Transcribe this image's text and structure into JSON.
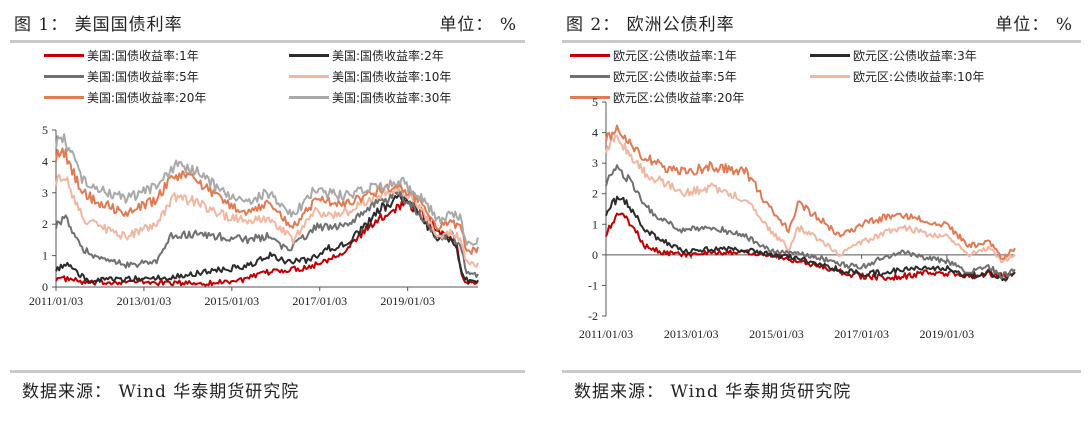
{
  "figures": [
    {
      "title": "图 1： 美国国债利率",
      "unit": "单位： %",
      "source": "数据来源： Wind  华泰期货研究院",
      "legend": [
        "美国:国债收益率:1年",
        "美国:国债收益率:2年",
        "美国:国债收益率:5年",
        "美国:国债收益率:10年",
        "美国:国债收益率:20年",
        "美国:国债收益率:30年"
      ]
    },
    {
      "title": "图 2： 欧洲公债利率",
      "unit": "单位： %",
      "source": "数据来源： Wind  华泰期货研究院",
      "legend": [
        "欧元区:公债收益率:1年",
        "欧元区:公债收益率:3年",
        "欧元区:公债收益率:5年",
        "欧元区:公债收益率:10年",
        "欧元区:公债收益率:20年"
      ]
    }
  ],
  "chart_data": [
    {
      "type": "line",
      "xlabel": "",
      "ylabel": "",
      "ylim": [
        0,
        5
      ],
      "yticks": [
        "0",
        "1",
        "2",
        "3",
        "4",
        "5"
      ],
      "xlim": [
        2011.0,
        2020.6
      ],
      "xticks": [
        2011.0,
        2013.0,
        2015.0,
        2017.0,
        2019.0
      ],
      "xtick_labels": [
        "2011/01/03",
        "2013/01/03",
        "2015/01/03",
        "2017/01/03",
        "2019/01/03"
      ],
      "grid": false,
      "legend_position": "top",
      "series": [
        {
          "name": "美国:国债收益率:1年",
          "color": "#c00000",
          "x": [
            2011.0,
            2011.3,
            2011.7,
            2012.5,
            2013.5,
            2014.5,
            2015.3,
            2015.9,
            2016.3,
            2016.8,
            2017.2,
            2017.6,
            2018.0,
            2018.4,
            2018.8,
            2018.95,
            2019.3,
            2019.6,
            2019.9,
            2020.1,
            2020.25,
            2020.4,
            2020.6
          ],
          "y": [
            0.28,
            0.25,
            0.12,
            0.17,
            0.13,
            0.12,
            0.24,
            0.5,
            0.55,
            0.65,
            0.9,
            1.2,
            1.75,
            2.2,
            2.6,
            2.7,
            2.4,
            1.9,
            1.6,
            1.5,
            0.2,
            0.15,
            0.13
          ]
        },
        {
          "name": "美国:国债收益率:2年",
          "color": "#2b2b2b",
          "x": [
            2011.0,
            2011.3,
            2011.7,
            2012.5,
            2013.5,
            2014.5,
            2015.3,
            2015.9,
            2016.3,
            2016.8,
            2017.2,
            2017.6,
            2018.0,
            2018.4,
            2018.8,
            2018.95,
            2019.3,
            2019.6,
            2019.9,
            2020.1,
            2020.25,
            2020.4,
            2020.6
          ],
          "y": [
            0.6,
            0.7,
            0.2,
            0.25,
            0.3,
            0.5,
            0.65,
            1.0,
            0.8,
            0.85,
            1.25,
            1.35,
            1.9,
            2.5,
            2.85,
            2.8,
            2.3,
            1.6,
            1.6,
            1.4,
            0.3,
            0.2,
            0.15
          ]
        },
        {
          "name": "美国:国债收益率:5年",
          "color": "#707070",
          "x": [
            2011.0,
            2011.2,
            2011.6,
            2012.0,
            2012.6,
            2013.3,
            2013.6,
            2014.2,
            2014.8,
            2015.3,
            2015.8,
            2016.3,
            2016.9,
            2017.5,
            2018.1,
            2018.8,
            2019.3,
            2019.7,
            2020.0,
            2020.2,
            2020.35,
            2020.6
          ],
          "y": [
            2.0,
            2.2,
            1.2,
            0.9,
            0.7,
            0.8,
            1.6,
            1.7,
            1.6,
            1.5,
            1.6,
            1.2,
            1.9,
            1.9,
            2.5,
            3.0,
            2.3,
            1.5,
            1.7,
            1.3,
            0.4,
            0.35
          ]
        },
        {
          "name": "美国:国债收益率:10年",
          "color": "#f0b8a2",
          "x": [
            2011.0,
            2011.2,
            2011.6,
            2012.0,
            2012.6,
            2013.3,
            2013.7,
            2014.2,
            2014.8,
            2015.3,
            2015.8,
            2016.4,
            2016.9,
            2017.5,
            2018.1,
            2018.8,
            2019.3,
            2019.7,
            2020.0,
            2020.2,
            2020.35,
            2020.6
          ],
          "y": [
            3.4,
            3.5,
            2.2,
            1.9,
            1.6,
            2.0,
            2.9,
            2.7,
            2.3,
            2.1,
            2.2,
            1.5,
            2.4,
            2.3,
            2.8,
            3.2,
            2.5,
            1.6,
            1.8,
            1.5,
            0.7,
            0.7
          ]
        },
        {
          "name": "美国:国债收益率:20年",
          "color": "#e07b54",
          "x": [
            2011.0,
            2011.2,
            2011.6,
            2012.0,
            2012.6,
            2013.3,
            2013.7,
            2014.2,
            2014.8,
            2015.3,
            2015.8,
            2016.4,
            2016.9,
            2017.5,
            2018.1,
            2018.8,
            2019.3,
            2019.7,
            2020.0,
            2020.2,
            2020.35,
            2020.6
          ],
          "y": [
            4.2,
            4.3,
            3.0,
            2.7,
            2.3,
            2.8,
            3.6,
            3.4,
            2.7,
            2.4,
            2.6,
            1.9,
            2.8,
            2.6,
            2.9,
            3.3,
            2.7,
            1.9,
            2.1,
            1.9,
            1.1,
            1.2
          ]
        },
        {
          "name": "美国:国债收益率:30年",
          "color": "#a9a9a9",
          "x": [
            2011.0,
            2011.2,
            2011.6,
            2012.0,
            2012.6,
            2013.3,
            2013.7,
            2014.2,
            2014.8,
            2015.3,
            2015.8,
            2016.4,
            2016.9,
            2017.5,
            2018.1,
            2018.8,
            2019.3,
            2019.7,
            2020.0,
            2020.2,
            2020.35,
            2020.6
          ],
          "y": [
            4.6,
            4.7,
            3.4,
            3.1,
            2.8,
            3.2,
            3.9,
            3.7,
            3.0,
            2.7,
            3.0,
            2.3,
            3.1,
            2.9,
            3.1,
            3.4,
            2.9,
            2.1,
            2.3,
            2.2,
            1.4,
            1.5
          ]
        }
      ]
    },
    {
      "type": "line",
      "xlabel": "",
      "ylabel": "",
      "ylim": [
        -2,
        5
      ],
      "yticks": [
        "-2",
        "-1",
        "0",
        "1",
        "2",
        "3",
        "4",
        "5"
      ],
      "xlim": [
        2011.0,
        2020.6
      ],
      "xticks": [
        2011.0,
        2013.0,
        2015.0,
        2017.0,
        2019.0
      ],
      "xtick_labels": [
        "2011/01/03",
        "2013/01/03",
        "2015/01/03",
        "2017/01/03",
        "2019/01/03"
      ],
      "grid": false,
      "legend_position": "top",
      "series": [
        {
          "name": "欧元区:公债收益率:1年",
          "color": "#c00000",
          "x": [
            2011.0,
            2011.3,
            2011.6,
            2011.9,
            2012.3,
            2012.8,
            2013.5,
            2014.3,
            2014.9,
            2015.5,
            2016.0,
            2016.5,
            2017.0,
            2017.5,
            2018.0,
            2018.5,
            2019.0,
            2019.5,
            2020.0,
            2020.3,
            2020.6
          ],
          "y": [
            0.7,
            1.4,
            1.0,
            0.3,
            0.1,
            0.0,
            0.05,
            0.1,
            0.0,
            -0.2,
            -0.35,
            -0.55,
            -0.7,
            -0.75,
            -0.7,
            -0.6,
            -0.6,
            -0.7,
            -0.6,
            -0.7,
            -0.6
          ]
        },
        {
          "name": "欧元区:公债收益率:3年",
          "color": "#2b2b2b",
          "x": [
            2011.0,
            2011.3,
            2011.6,
            2011.9,
            2012.3,
            2012.8,
            2013.5,
            2014.3,
            2014.9,
            2015.5,
            2016.0,
            2016.5,
            2017.0,
            2017.5,
            2018.0,
            2018.5,
            2019.0,
            2019.5,
            2020.0,
            2020.3,
            2020.6
          ],
          "y": [
            1.4,
            1.9,
            1.5,
            0.8,
            0.5,
            0.1,
            0.2,
            0.15,
            0.0,
            -0.1,
            -0.3,
            -0.5,
            -0.6,
            -0.6,
            -0.45,
            -0.4,
            -0.45,
            -0.7,
            -0.55,
            -0.8,
            -0.6
          ]
        },
        {
          "name": "欧元区:公债收益率:5年",
          "color": "#707070",
          "x": [
            2011.0,
            2011.3,
            2011.6,
            2011.9,
            2012.3,
            2012.8,
            2013.5,
            2014.3,
            2014.9,
            2015.5,
            2016.0,
            2016.5,
            2017.0,
            2017.5,
            2018.0,
            2018.5,
            2019.0,
            2019.5,
            2020.0,
            2020.3,
            2020.6
          ],
          "y": [
            2.4,
            2.9,
            2.3,
            1.6,
            1.2,
            0.8,
            0.9,
            0.6,
            0.1,
            0.1,
            -0.1,
            -0.3,
            -0.4,
            -0.1,
            0.1,
            -0.1,
            -0.2,
            -0.6,
            -0.4,
            -0.7,
            -0.5
          ]
        },
        {
          "name": "欧元区:公债收益率:10年",
          "color": "#f0b8a2",
          "x": [
            2011.0,
            2011.3,
            2011.6,
            2011.9,
            2012.3,
            2012.8,
            2013.5,
            2014.3,
            2014.9,
            2015.3,
            2015.5,
            2016.0,
            2016.5,
            2017.0,
            2017.5,
            2018.0,
            2018.5,
            2019.0,
            2019.5,
            2020.0,
            2020.3,
            2020.6
          ],
          "y": [
            3.5,
            3.8,
            3.2,
            2.7,
            2.4,
            2.0,
            2.2,
            1.8,
            0.7,
            0.2,
            0.9,
            0.5,
            0.0,
            0.4,
            0.7,
            0.9,
            0.7,
            0.6,
            0.0,
            0.2,
            -0.2,
            0.0
          ]
        },
        {
          "name": "欧元区:公债收益率:20年",
          "color": "#e07b54",
          "x": [
            2011.0,
            2011.3,
            2011.6,
            2011.9,
            2012.3,
            2012.8,
            2013.5,
            2014.3,
            2014.9,
            2015.3,
            2015.5,
            2016.0,
            2016.5,
            2017.0,
            2017.5,
            2018.0,
            2018.5,
            2019.0,
            2019.5,
            2020.0,
            2020.3,
            2020.6
          ],
          "y": [
            3.9,
            4.1,
            3.6,
            3.2,
            2.9,
            2.7,
            2.9,
            2.7,
            1.4,
            0.8,
            1.7,
            1.2,
            0.6,
            1.0,
            1.2,
            1.3,
            1.1,
            1.0,
            0.3,
            0.4,
            -0.1,
            0.2
          ]
        }
      ]
    }
  ]
}
